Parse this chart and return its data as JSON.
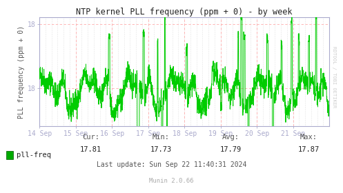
{
  "title": "NTP kernel PLL frequency (ppm + 0) - by week",
  "ylabel": "PLL frequency (ppm + 0)",
  "line_color": "#00cc00",
  "bg_color": "#ffffff",
  "plot_bg_color": "#ffffff",
  "grid_color_minor_v": "#dddddd",
  "grid_color_major": "#ffbbbb",
  "axis_color": "#aaaacc",
  "text_color": "#555555",
  "legend_label": "pll-freq",
  "legend_color": "#00aa00",
  "cur": "17.81",
  "min_val": "17.73",
  "avg": "17.79",
  "max_val": "17.87",
  "last_update": "Last update: Sun Sep 22 11:40:31 2024",
  "munin_version": "Munin 2.0.66",
  "watermark": "RDTOOL / TOBI OETIKER",
  "ylim_min": 17.68,
  "ylim_max": 18.02,
  "ytick_top": 18.0,
  "ytick_mid": 18.0,
  "day_labels": [
    "14 Sep",
    "15 Sep",
    "16 Sep",
    "17 Sep",
    "18 Sep",
    "19 Sep",
    "20 Sep",
    "21 Sep"
  ],
  "seed": 42
}
